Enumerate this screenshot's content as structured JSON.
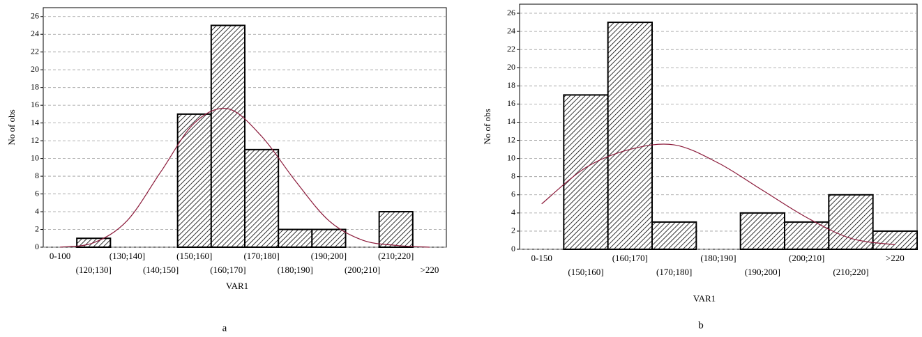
{
  "chart_data": [
    {
      "type": "bar",
      "caption": "a",
      "xlabel": "VAR1",
      "ylabel": "No of obs",
      "categories": [
        "0-100",
        "(120;130]",
        "(130;140]",
        "(140;150]",
        "(150;160]",
        "(160;170]",
        "(170;180]",
        "(180;190]",
        "(190;200]",
        "(200;210]",
        "(210;220]",
        ">220"
      ],
      "values": [
        0,
        1,
        0,
        0,
        15,
        25,
        11,
        2,
        2,
        0,
        4,
        0
      ],
      "color": "#000000",
      "hatch": true,
      "curve": {
        "values": [
          0,
          0.5,
          3,
          8.5,
          14,
          15.6,
          12.5,
          7.5,
          3,
          0.8,
          0.2,
          0
        ],
        "color": "#8b1a3a"
      },
      "ylim": [
        0,
        27
      ],
      "yticks": [
        0,
        2,
        4,
        6,
        8,
        10,
        12,
        14,
        16,
        18,
        20,
        22,
        24,
        26
      ],
      "grid": true
    },
    {
      "type": "bar",
      "caption": "b",
      "xlabel": "VAR1",
      "ylabel": "No of obs",
      "categories": [
        "0-150",
        "(150;160]",
        "(160;170]",
        "(170;180]",
        "(180;190]",
        "(190;200]",
        "(200;210]",
        "(210;220]",
        ">220"
      ],
      "values": [
        0,
        17,
        25,
        3,
        0,
        4,
        3,
        6,
        2
      ],
      "color": "#000000",
      "hatch": true,
      "curve": {
        "values": [
          5,
          9,
          11,
          11.5,
          9.5,
          6.5,
          3.5,
          1.2,
          0.5
        ],
        "color": "#8b1a3a"
      },
      "ylim": [
        0,
        27
      ],
      "yticks": [
        0,
        2,
        4,
        6,
        8,
        10,
        12,
        14,
        16,
        18,
        20,
        22,
        24,
        26
      ],
      "grid": true
    }
  ]
}
